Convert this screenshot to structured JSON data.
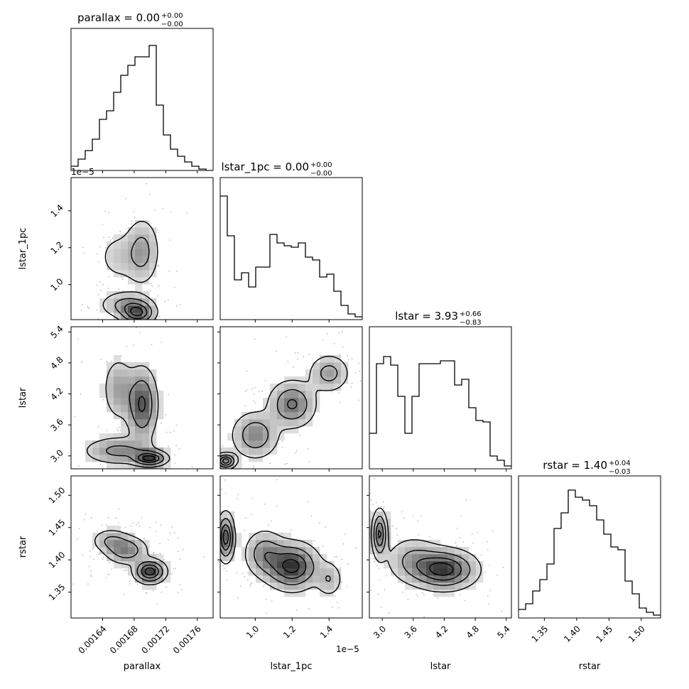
{
  "chart_data": {
    "type": "corner",
    "parameters": [
      {
        "name": "parallax",
        "axis_label": "parallax",
        "title_main": "parallax = 0.00",
        "title_sup": "+0.00",
        "title_sub": "−0.00",
        "range": [
          0.0016,
          0.00178
        ],
        "ticks": [
          0.00164,
          0.00168,
          0.00172,
          0.00176
        ],
        "tick_labels": [
          "0.00164",
          "0.00168",
          "0.00172",
          "0.00176"
        ]
      },
      {
        "name": "lstar_1pc",
        "axis_label": "lstar_1pc",
        "title_main": "lstar_1pc = 0.00",
        "title_sup": "+0.00",
        "title_sub": "−0.00",
        "range": [
          0.81,
          1.58
        ],
        "offset_text": "1e−5",
        "ticks": [
          1.0,
          1.2,
          1.4
        ],
        "tick_labels": [
          "1.0",
          "1.2",
          "1.4"
        ]
      },
      {
        "name": "lstar",
        "axis_label": "lstar",
        "title_main": "lstar = 3.93",
        "title_sup": "+0.66",
        "title_sub": "−0.83",
        "range": [
          2.75,
          5.5
        ],
        "ticks": [
          3.0,
          3.6,
          4.2,
          4.8,
          5.4
        ],
        "tick_labels": [
          "3.0",
          "3.6",
          "4.2",
          "4.8",
          "5.4"
        ]
      },
      {
        "name": "rstar",
        "axis_label": "rstar",
        "title_main": "rstar = 1.40",
        "title_sup": "+0.04",
        "title_sub": "−0.03",
        "range": [
          1.31,
          1.53
        ],
        "ticks": [
          1.35,
          1.4,
          1.45,
          1.5
        ],
        "tick_labels": [
          "1.35",
          "1.40",
          "1.45",
          "1.50"
        ]
      }
    ],
    "histograms": {
      "parallax": [
        0.03,
        0.08,
        0.14,
        0.22,
        0.36,
        0.42,
        0.55,
        0.67,
        0.74,
        0.8,
        0.8,
        0.88,
        0.46,
        0.25,
        0.15,
        0.1,
        0.06,
        0.03,
        0.01,
        0.0
      ],
      "lstar_1pc": [
        0.87,
        0.59,
        0.28,
        0.33,
        0.23,
        0.37,
        0.37,
        0.6,
        0.54,
        0.52,
        0.51,
        0.54,
        0.44,
        0.42,
        0.3,
        0.32,
        0.2,
        0.1,
        0.04,
        0.02
      ],
      "lstar": [
        0.25,
        0.74,
        0.79,
        0.73,
        0.51,
        0.25,
        0.51,
        0.74,
        0.74,
        0.74,
        0.76,
        0.76,
        0.59,
        0.63,
        0.43,
        0.34,
        0.33,
        0.09,
        0.06,
        0.02
      ],
      "rstar": [
        0.06,
        0.1,
        0.19,
        0.27,
        0.38,
        0.63,
        0.74,
        0.9,
        0.85,
        0.83,
        0.79,
        0.69,
        0.59,
        0.5,
        0.48,
        0.26,
        0.17,
        0.07,
        0.04,
        0.02
      ]
    },
    "contour_levels": [
      0.12,
      0.35,
      0.62,
      0.86
    ],
    "density_components": {
      "lstar_1pc|parallax": [
        {
          "mx": 0.001685,
          "my": 0.845,
          "sx": 1.2e-05,
          "sy": 0.035,
          "w": 1.0
        },
        {
          "mx": 0.00167,
          "my": 0.89,
          "sx": 1.8e-05,
          "sy": 0.04,
          "w": 0.55
        },
        {
          "mx": 0.00169,
          "my": 1.18,
          "sx": 1.2e-05,
          "sy": 0.1,
          "w": 0.55
        },
        {
          "mx": 0.00166,
          "my": 1.15,
          "sx": 1.6e-05,
          "sy": 0.08,
          "w": 0.25
        }
      ],
      "lstar|parallax": [
        {
          "mx": 0.0017,
          "my": 2.95,
          "sx": 1.2e-05,
          "sy": 0.08,
          "w": 1.0
        },
        {
          "mx": 0.00166,
          "my": 3.1,
          "sx": 2.5e-05,
          "sy": 0.15,
          "w": 0.45
        },
        {
          "mx": 0.00169,
          "my": 4.0,
          "sx": 1.1e-05,
          "sy": 0.4,
          "w": 0.7
        },
        {
          "mx": 0.00166,
          "my": 4.3,
          "sx": 1.1e-05,
          "sy": 0.35,
          "w": 0.35
        }
      ],
      "rstar|parallax": [
        {
          "mx": 0.00167,
          "my": 1.415,
          "sx": 1.5e-05,
          "sy": 0.012,
          "w": 0.55
        },
        {
          "mx": 0.0017,
          "my": 1.382,
          "sx": 1.1e-05,
          "sy": 0.01,
          "w": 1.0
        },
        {
          "mx": 0.00165,
          "my": 1.43,
          "sx": 1.3e-05,
          "sy": 0.01,
          "w": 0.35
        }
      ],
      "lstar|lstar_1pc": [
        {
          "mx": 0.84,
          "my": 2.9,
          "sx": 0.03,
          "sy": 0.08,
          "w": 1.0
        },
        {
          "mx": 1.0,
          "my": 3.4,
          "sx": 0.07,
          "sy": 0.25,
          "w": 0.55
        },
        {
          "mx": 1.2,
          "my": 4.0,
          "sx": 0.07,
          "sy": 0.25,
          "w": 0.65
        },
        {
          "mx": 1.4,
          "my": 4.6,
          "sx": 0.06,
          "sy": 0.2,
          "w": 0.45
        }
      ],
      "rstar|lstar_1pc": [
        {
          "mx": 0.84,
          "my": 1.435,
          "sx": 0.025,
          "sy": 0.02,
          "w": 0.9
        },
        {
          "mx": 1.2,
          "my": 1.39,
          "sx": 0.08,
          "sy": 0.02,
          "w": 0.85
        },
        {
          "mx": 1.05,
          "my": 1.41,
          "sx": 0.06,
          "sy": 0.02,
          "w": 0.45
        },
        {
          "mx": 1.4,
          "my": 1.37,
          "sx": 0.04,
          "sy": 0.015,
          "w": 0.3
        }
      ],
      "rstar|lstar": [
        {
          "mx": 2.95,
          "my": 1.44,
          "sx": 0.08,
          "sy": 0.02,
          "w": 0.95
        },
        {
          "mx": 4.2,
          "my": 1.385,
          "sx": 0.35,
          "sy": 0.017,
          "w": 1.0
        },
        {
          "mx": 3.6,
          "my": 1.4,
          "sx": 0.3,
          "sy": 0.02,
          "w": 0.4
        }
      ]
    },
    "grid": false,
    "legend": "none"
  }
}
